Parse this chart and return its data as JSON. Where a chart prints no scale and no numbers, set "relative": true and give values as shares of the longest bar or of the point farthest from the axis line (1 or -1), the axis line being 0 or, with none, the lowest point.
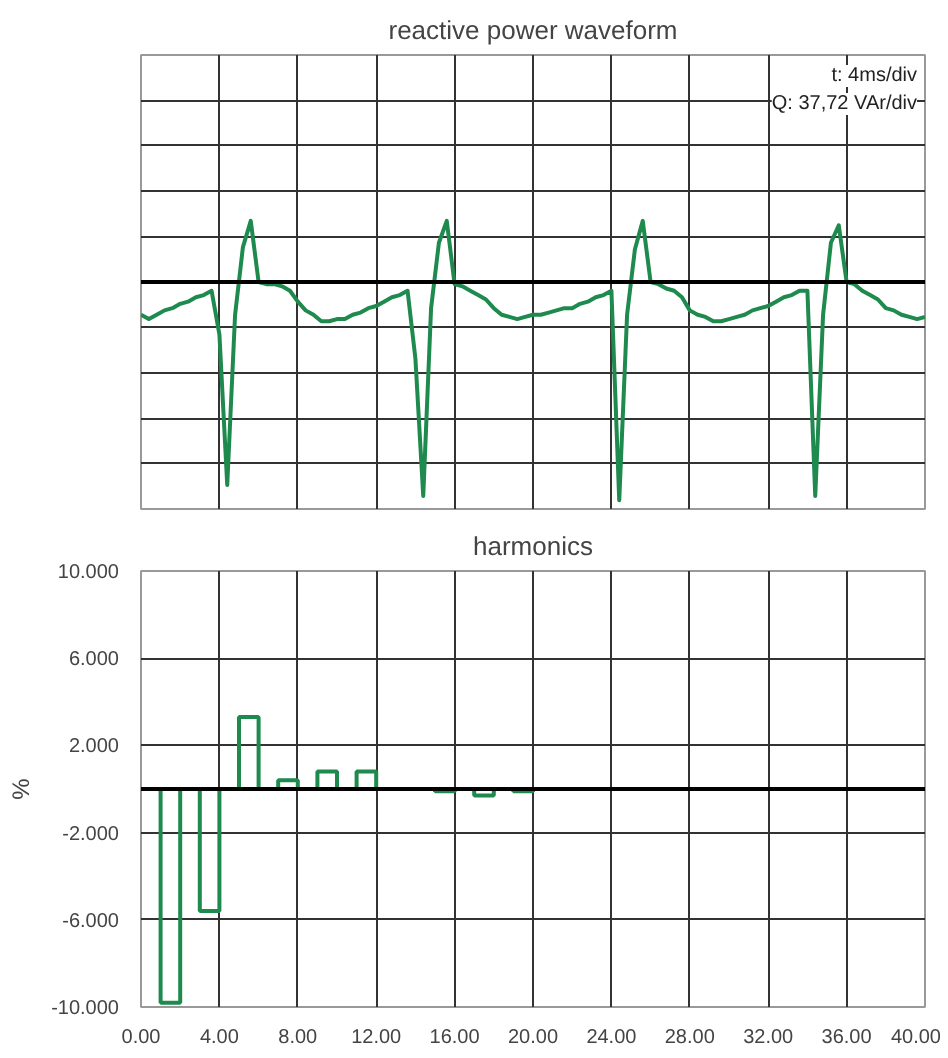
{
  "chart_data": [
    {
      "type": "line",
      "title": "reactive power waveform",
      "relative": true,
      "grid": true,
      "categories": [
        null,
        null,
        null,
        null,
        null,
        null,
        null,
        null,
        null,
        null,
        null,
        null,
        null,
        null,
        null,
        null,
        null,
        null,
        null,
        null,
        null,
        null,
        null,
        null,
        null,
        null,
        null,
        null,
        null,
        null,
        null,
        null,
        null,
        null,
        null,
        null,
        null,
        null,
        null,
        null,
        null,
        null,
        null,
        null,
        null,
        null,
        null,
        null,
        null,
        null,
        null,
        null,
        null,
        null,
        null,
        null,
        null,
        null,
        null,
        null,
        null,
        null,
        null,
        null,
        null,
        null,
        null,
        null,
        null,
        null,
        null,
        null,
        null,
        null,
        null,
        null,
        null,
        null,
        null,
        null,
        null,
        null,
        null,
        null,
        null,
        null,
        null,
        null,
        null,
        null,
        null,
        null,
        null,
        null,
        null,
        null,
        null,
        null,
        null,
        null,
        null
      ],
      "series": [
        {
          "color": "#1e8a4e",
          "values": [
            -0.15,
            -0.17,
            -0.15,
            -0.13,
            -0.12,
            -0.1,
            -0.09,
            -0.07,
            -0.06,
            -0.04,
            -0.24,
            -0.93,
            -0.15,
            0.16,
            0.28,
            0,
            -0.01,
            -0.01,
            -0.02,
            -0.04,
            -0.09,
            -0.13,
            -0.15,
            -0.18,
            -0.18,
            -0.17,
            -0.17,
            -0.15,
            -0.14,
            -0.12,
            -0.11,
            -0.09,
            -0.07,
            -0.06,
            -0.04,
            -0.35,
            -0.98,
            -0.12,
            0.18,
            0.28,
            -0.01,
            -0.02,
            -0.04,
            -0.06,
            -0.08,
            -0.12,
            -0.15,
            -0.16,
            -0.17,
            -0.16,
            -0.15,
            -0.15,
            -0.14,
            -0.13,
            -0.12,
            -0.12,
            -0.1,
            -0.09,
            -0.07,
            -0.06,
            -0.04,
            -1.0,
            -0.15,
            0.15,
            0.28,
            0,
            -0.01,
            -0.03,
            -0.04,
            -0.07,
            -0.13,
            -0.15,
            -0.16,
            -0.18,
            -0.18,
            -0.17,
            -0.16,
            -0.15,
            -0.13,
            -0.12,
            -0.11,
            -0.09,
            -0.07,
            -0.06,
            -0.04,
            -0.04,
            -0.98,
            -0.15,
            0.18,
            0.26,
            0,
            -0.01,
            -0.04,
            -0.06,
            -0.08,
            -0.12,
            -0.13,
            -0.15,
            -0.16,
            -0.17,
            -0.16
          ]
        }
      ],
      "annotations": [
        "t: 4ms/div",
        "Q: 37,72 VAr/div"
      ]
    },
    {
      "type": "bar",
      "title": "harmonics",
      "ylabel": "%",
      "grid": true,
      "x": [
        1.5,
        3.5,
        5.5,
        7.5,
        9.5,
        11.5,
        15.5,
        17.5,
        19.5
      ],
      "series": [
        {
          "color": "#1e8a4e",
          "values": [
            -9.8,
            -5.6,
            3.3,
            0.4,
            0.8,
            0.8,
            -0.1,
            -0.3,
            -0.1
          ]
        }
      ],
      "xlim": [
        0,
        40
      ],
      "xticks": [
        {
          "value": 0,
          "label": "0.00"
        },
        {
          "value": 4,
          "label": "4.00"
        },
        {
          "value": 8,
          "label": "8.00"
        },
        {
          "value": 12,
          "label": "12.00"
        },
        {
          "value": 16,
          "label": "16.00"
        },
        {
          "value": 20,
          "label": "20.00"
        },
        {
          "value": 24,
          "label": "24.00"
        },
        {
          "value": 28,
          "label": "28.00"
        },
        {
          "value": 32,
          "label": "32.00"
        },
        {
          "value": 36,
          "label": "36.00"
        },
        {
          "value": 40,
          "label": "40.00"
        }
      ],
      "ylim": [
        -10,
        10
      ],
      "yticks": [
        {
          "value": -10,
          "label": "-10.000"
        },
        {
          "value": -6,
          "label": "-6.000"
        },
        {
          "value": -2,
          "label": "-2.000"
        },
        {
          "value": 2,
          "label": "2.000"
        },
        {
          "value": 6,
          "label": "6.000"
        },
        {
          "value": 10,
          "label": "10.000"
        }
      ],
      "ref_lines": [
        {
          "axis": "y",
          "value": 0,
          "color": "#000000"
        }
      ]
    }
  ]
}
